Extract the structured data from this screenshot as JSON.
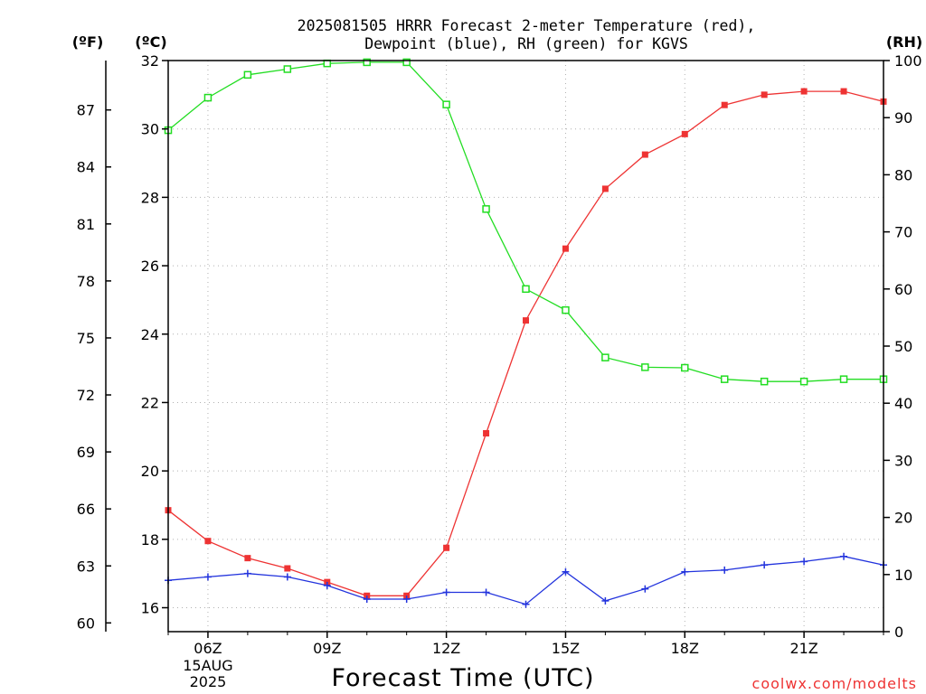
{
  "chart_data": {
    "type": "line",
    "title_line1": "2025081505 HRRR Forecast 2-meter Temperature (red),",
    "title_line2": "Dewpoint (blue), RH (green) for KGVS",
    "xlabel": "Forecast Time (UTC)",
    "watermark": "coolwx.com/modelts",
    "left_f_label": "(ºF)",
    "left_c_label": "(ºC)",
    "right_label": "(RH)",
    "x_hours": [
      5,
      6,
      7,
      8,
      9,
      10,
      11,
      12,
      13,
      14,
      15,
      16,
      17,
      18,
      19,
      20,
      21,
      22,
      23
    ],
    "x_range_hours": [
      5,
      23
    ],
    "x_ticks": [
      {
        "hour": 6,
        "label": "06Z",
        "sub": [
          "15AUG",
          "2025"
        ]
      },
      {
        "hour": 9,
        "label": "09Z"
      },
      {
        "hour": 12,
        "label": "12Z"
      },
      {
        "hour": 15,
        "label": "15Z"
      },
      {
        "hour": 18,
        "label": "18Z"
      },
      {
        "hour": 21,
        "label": "21Z"
      }
    ],
    "c_axis": {
      "range": [
        15.3,
        32
      ],
      "ticks": [
        16,
        18,
        20,
        22,
        24,
        26,
        28,
        30,
        32
      ]
    },
    "f_axis": {
      "ticks": [
        60,
        63,
        66,
        69,
        72,
        75,
        78,
        81,
        84,
        87
      ]
    },
    "rh_axis": {
      "range": [
        0,
        100
      ],
      "ticks": [
        0,
        10,
        20,
        30,
        40,
        50,
        60,
        70,
        80,
        90,
        100
      ]
    },
    "grid": true,
    "series": [
      {
        "name": "Temperature",
        "axis": "c",
        "color": "#ee3333",
        "marker": "filled-square",
        "values": [
          18.85,
          17.95,
          17.45,
          17.15,
          16.75,
          16.35,
          16.35,
          17.75,
          21.1,
          24.4,
          26.5,
          28.25,
          29.25,
          29.85,
          30.7,
          31.0,
          31.1,
          31.1,
          30.8
        ]
      },
      {
        "name": "Dewpoint",
        "axis": "c",
        "color": "#2233dd",
        "marker": "plus",
        "values": [
          16.8,
          16.9,
          17.0,
          16.9,
          16.65,
          16.25,
          16.25,
          16.45,
          16.45,
          16.1,
          17.05,
          16.2,
          16.55,
          17.05,
          17.1,
          17.25,
          17.35,
          17.5,
          17.25
        ]
      },
      {
        "name": "RH",
        "axis": "rh",
        "color": "#22dd22",
        "marker": "open-square",
        "values": [
          87.8,
          93.5,
          97.5,
          98.5,
          99.5,
          99.7,
          99.7,
          92.3,
          74.0,
          60.0,
          56.3,
          48.0,
          46.3,
          46.2,
          44.2,
          43.8,
          43.8,
          44.2,
          44.2
        ]
      }
    ]
  }
}
